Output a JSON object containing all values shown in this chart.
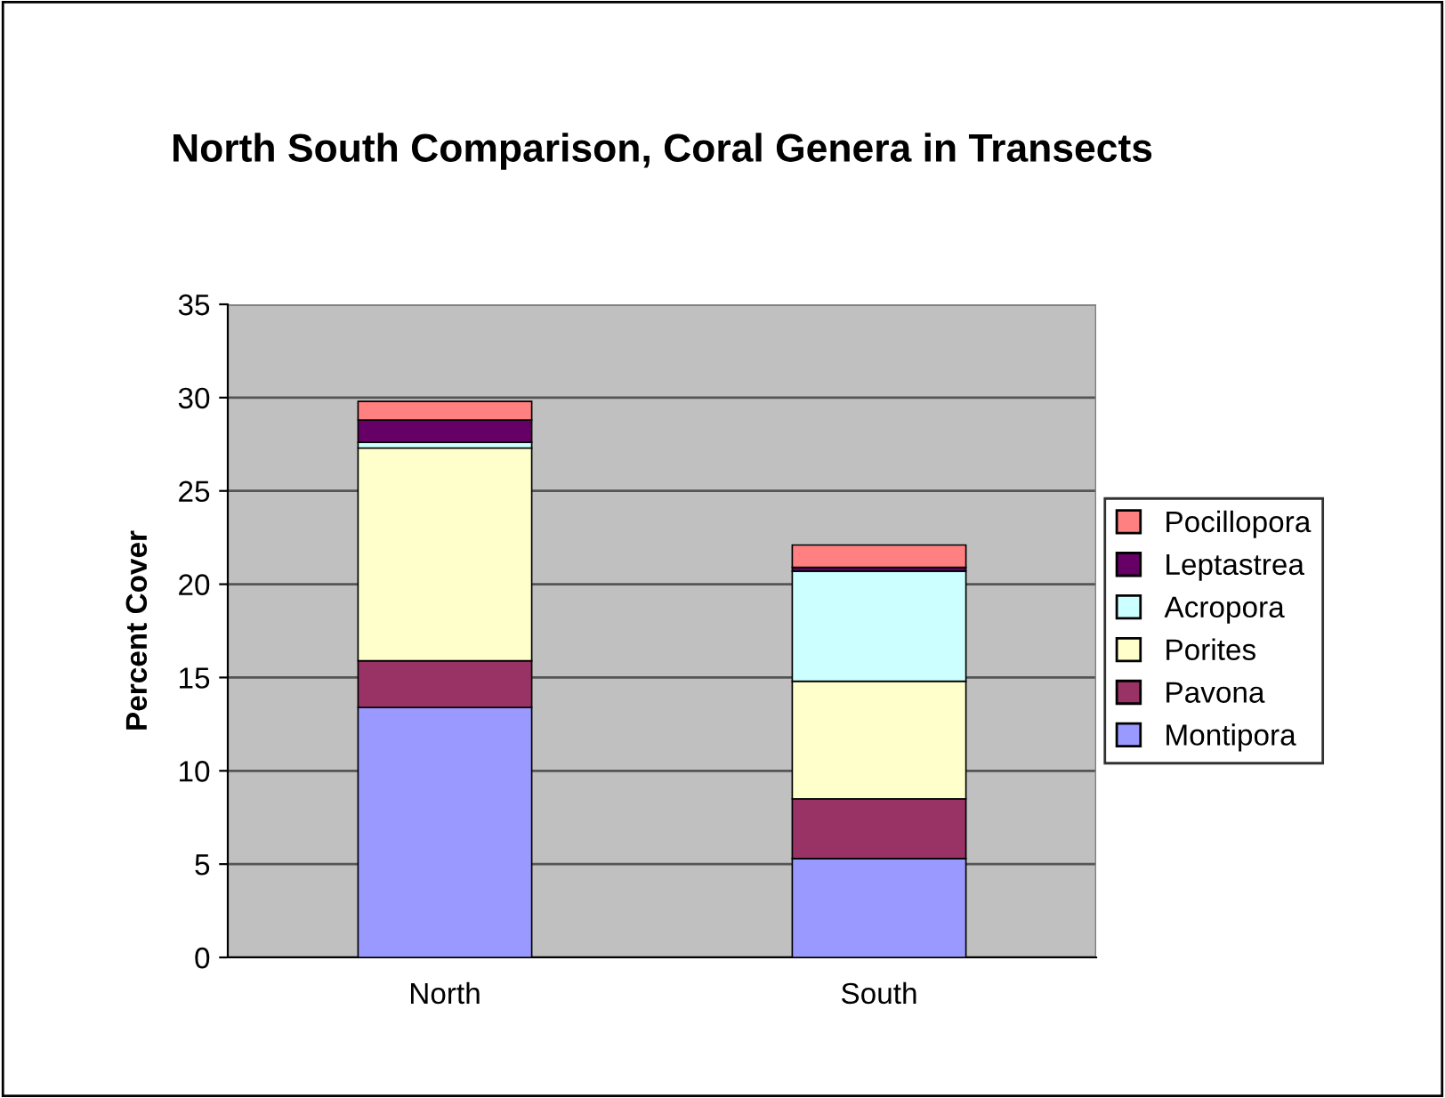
{
  "chart_data": {
    "type": "bar",
    "title": "North South Comparison, Coral Genera in Transects",
    "ylabel": "Percent Cover",
    "categories": [
      "North",
      "South"
    ],
    "stacked": true,
    "series": [
      {
        "name": "Montipora",
        "color": "#9999ff",
        "values": [
          13.4,
          5.3
        ]
      },
      {
        "name": "Pavona",
        "color": "#993366",
        "values": [
          2.5,
          3.2
        ]
      },
      {
        "name": "Porites",
        "color": "#ffffcc",
        "values": [
          11.4,
          6.3
        ]
      },
      {
        "name": "Acropora",
        "color": "#ccffff",
        "values": [
          0.3,
          5.9
        ]
      },
      {
        "name": "Leptastrea",
        "color": "#660066",
        "values": [
          1.2,
          0.2
        ]
      },
      {
        "name": "Pocillopora",
        "color": "#ff8080",
        "values": [
          1.0,
          1.2
        ]
      }
    ],
    "ylim": [
      0,
      35
    ],
    "yticks": [
      0,
      5,
      10,
      15,
      20,
      25,
      30,
      35
    ],
    "grid": "y",
    "legend": "right"
  }
}
